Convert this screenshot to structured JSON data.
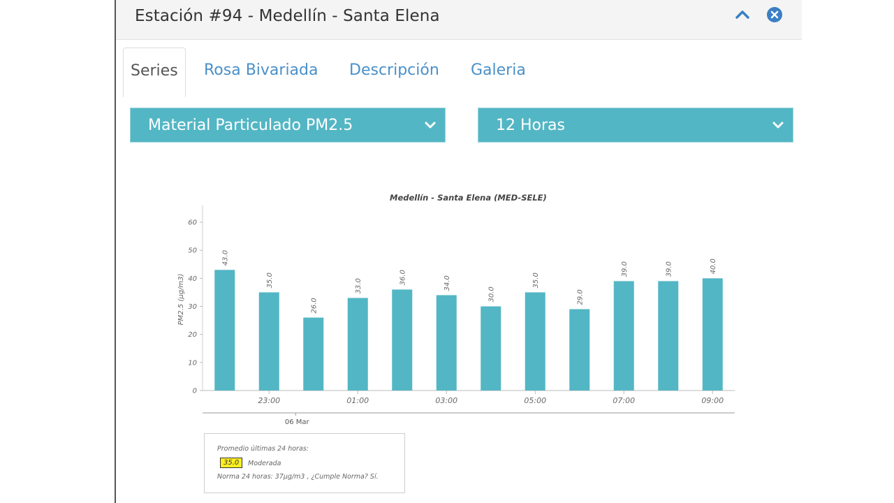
{
  "header": {
    "title": "Estación #94 - Medellín - Santa Elena"
  },
  "tabs": [
    {
      "label": "Series",
      "active": true
    },
    {
      "label": "Rosa Bivariada",
      "active": false
    },
    {
      "label": "Descripción",
      "active": false
    },
    {
      "label": "Galeria",
      "active": false
    }
  ],
  "selects": {
    "pollutant": "Material Particulado PM2.5",
    "period": "12 Horas"
  },
  "colors": {
    "accent": "#53b6c4",
    "link": "#4a90c8",
    "icon": "#3a7fc4",
    "badge": "#ffef1f"
  },
  "chart_data": {
    "type": "bar",
    "title": "Medellín - Santa Elena (MED-SELE)",
    "ylabel": "PM2.5 (µg/m3)",
    "ylim": [
      0,
      65
    ],
    "yticks": [
      0,
      10,
      20,
      30,
      40,
      50,
      60
    ],
    "values": [
      43.0,
      35.0,
      26.0,
      33.0,
      36.0,
      34.0,
      30.0,
      35.0,
      29.0,
      39.0,
      39.0,
      40.0
    ],
    "value_labels": [
      "43.0",
      "35.0",
      "26.0",
      "33.0",
      "36.0",
      "34.0",
      "30.0",
      "35.0",
      "29.0",
      "39.0",
      "39.0",
      "40.0"
    ],
    "xtick_labels": [
      "23:00",
      "01:00",
      "03:00",
      "05:00",
      "07:00",
      "09:00"
    ],
    "date_label": "06 Mar",
    "color": "#53b6c4"
  },
  "legend": {
    "line1": "Promedio últimas 24 horas:",
    "value": "35.0",
    "category": "Moderada",
    "line3": "Norma 24 horas: 37µg/m3 , ¿Cumple Norma? Sí."
  }
}
